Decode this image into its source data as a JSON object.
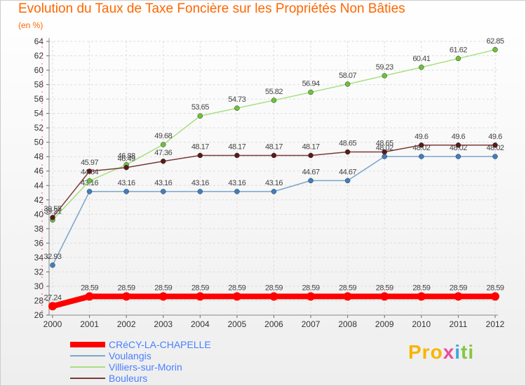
{
  "chart_data": {
    "type": "line",
    "title": "Evolution du Taux de Taxe Foncière sur les Propriétés Non Bâties",
    "ylabel": "(en %)",
    "xlabel": "",
    "x": [
      "2000",
      "2001",
      "2002",
      "2003",
      "2004",
      "2005",
      "2006",
      "2007",
      "2008",
      "2009",
      "2010",
      "2011",
      "2012"
    ],
    "ylim": [
      26,
      64
    ],
    "yticks": [
      26,
      28,
      30,
      32,
      34,
      36,
      38,
      40,
      42,
      44,
      46,
      48,
      50,
      52,
      54,
      56,
      58,
      60,
      62,
      64
    ],
    "grid": true,
    "series": [
      {
        "name": "CRéCY-LA-CHAPELLE",
        "color": "#ff0000",
        "marker_color": "#ff0000",
        "width": 8,
        "values": [
          27.24,
          28.59,
          28.59,
          28.59,
          28.59,
          28.59,
          28.59,
          28.59,
          28.59,
          28.59,
          28.59,
          28.59,
          28.59
        ],
        "labels": [
          "27.24",
          "28.59",
          "28.59",
          "28.59",
          "28.59",
          "28.59",
          "28.59",
          "28.59",
          "28.59",
          "28.59",
          "28.59",
          "28.59",
          "28.59"
        ]
      },
      {
        "name": "Voulangis",
        "color": "#7aa6c9",
        "marker_color": "#3d7fc1",
        "width": 1.5,
        "values": [
          32.93,
          43.16,
          43.16,
          43.16,
          43.16,
          43.16,
          43.16,
          44.67,
          44.67,
          48.02,
          48.02,
          48.02,
          48.02
        ],
        "labels": [
          "32.93",
          "43.16",
          "43.16",
          "43.16",
          "43.16",
          "43.16",
          "43.16",
          "44.67",
          "44.67",
          "48.02",
          "48.02",
          "48.02",
          "48.02"
        ]
      },
      {
        "name": "Villiers-sur-Morin",
        "color": "#a8e082",
        "marker_color": "#6cc238",
        "width": 1.5,
        "values": [
          39.21,
          44.64,
          46.88,
          49.68,
          53.65,
          54.73,
          55.82,
          56.94,
          58.07,
          59.23,
          60.41,
          61.62,
          62.85
        ],
        "labels": [
          "39.21",
          "44.64",
          "46.88",
          "49.68",
          "53.65",
          "54.73",
          "55.82",
          "56.94",
          "58.07",
          "59.23",
          "60.41",
          "61.62",
          "62.85"
        ]
      },
      {
        "name": "Bouleurs",
        "color": "#7a3a3a",
        "marker_color": "#5a1a1a",
        "width": 1.5,
        "values": [
          39.55,
          45.97,
          46.49,
          47.36,
          48.17,
          48.17,
          48.17,
          48.17,
          48.65,
          48.65,
          49.6,
          49.6,
          49.6
        ],
        "labels": [
          "39.55",
          "45.97",
          "46.49",
          "47.36",
          "48.17",
          "48.17",
          "48.17",
          "48.17",
          "48.65",
          "48.65",
          "49.6",
          "49.6",
          "49.6"
        ]
      }
    ]
  },
  "logo": {
    "p1": "Pro",
    "p2": "x",
    "p3": "i",
    "p4": "ti"
  }
}
